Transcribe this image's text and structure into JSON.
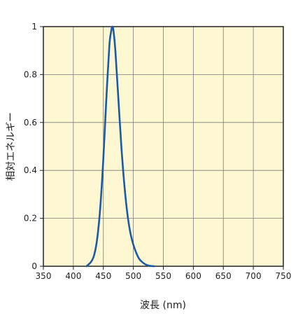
{
  "chart_data": {
    "type": "line",
    "title": "",
    "xlabel": "波長 (nm)",
    "ylabel": "相対エネルギー",
    "xlim": [
      350,
      750
    ],
    "ylim": [
      0,
      1
    ],
    "x_ticks": [
      "350",
      "400",
      "450",
      "500",
      "550",
      "600",
      "650",
      "700",
      "750"
    ],
    "y_ticks": [
      "0",
      "0.2",
      "0.4",
      "0.6",
      "0.8",
      "1"
    ],
    "grid": true,
    "colors": {
      "plot_background": "#fdf8d2",
      "grid": "#7a7a7a",
      "frame": "#222222",
      "series": "#1d5aa6"
    },
    "series": [
      {
        "x": [
          422,
          430,
          435,
          440,
          445,
          450,
          455,
          460,
          463,
          465,
          467,
          470,
          475,
          480,
          485,
          490,
          495,
          500,
          505,
          510,
          515,
          520,
          525,
          530,
          535
        ],
        "y": [
          0.0,
          0.02,
          0.05,
          0.12,
          0.25,
          0.45,
          0.7,
          0.92,
          0.98,
          1.0,
          0.98,
          0.9,
          0.7,
          0.5,
          0.34,
          0.22,
          0.14,
          0.09,
          0.055,
          0.03,
          0.017,
          0.008,
          0.003,
          0.001,
          0.0
        ]
      }
    ]
  }
}
